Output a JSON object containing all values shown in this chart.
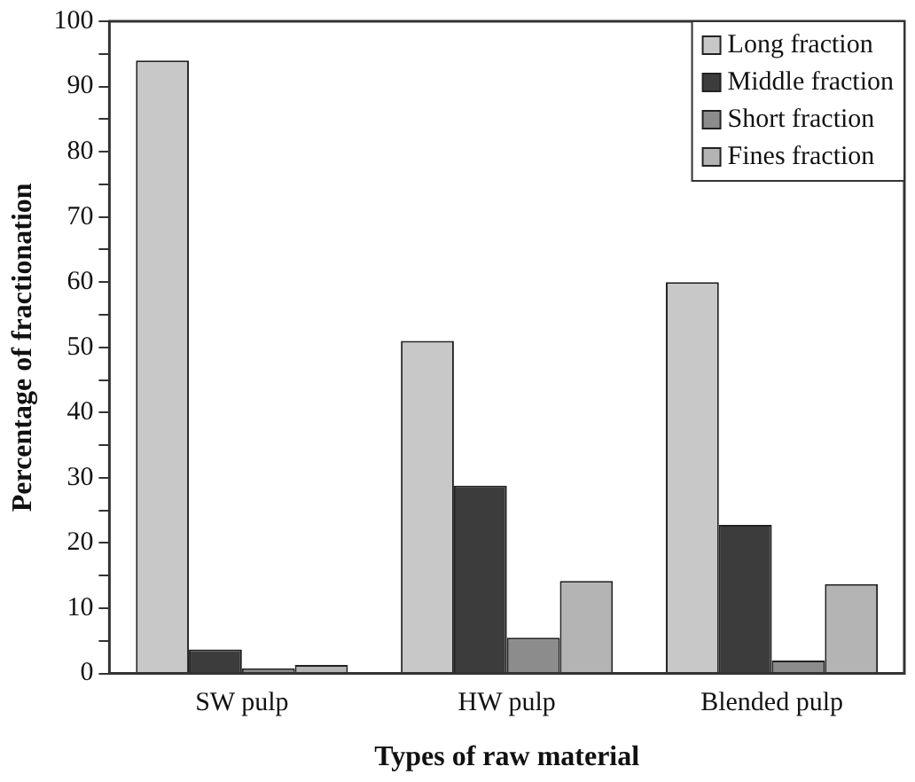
{
  "chart_data": {
    "type": "bar",
    "xlabel": "Types of raw material",
    "ylabel": "Percentage of fractionation",
    "categories": [
      "SW pulp",
      "HW pulp",
      "Blended pulp"
    ],
    "series": [
      {
        "name": "Long fraction",
        "color": "#c8c8c8",
        "values": [
          94,
          51,
          60
        ]
      },
      {
        "name": "Middle fraction",
        "color": "#3c3c3c",
        "values": [
          3.7,
          28.8,
          22.8
        ]
      },
      {
        "name": "Short fraction",
        "color": "#8c8c8c",
        "values": [
          0.8,
          5.5,
          2
        ]
      },
      {
        "name": "Fines fraction",
        "color": "#b4b4b4",
        "values": [
          1.3,
          14.2,
          13.7
        ]
      }
    ],
    "ylim": [
      0,
      100
    ],
    "yticks": [
      0,
      {
        "value": 5,
        "label": null
      },
      10,
      {
        "value": 15,
        "label": null
      },
      20,
      {
        "value": 25,
        "label": null
      },
      30,
      {
        "value": 35,
        "label": null
      },
      40,
      {
        "value": 45,
        "label": null
      },
      50,
      {
        "value": 55,
        "label": null
      },
      60,
      {
        "value": 65,
        "label": null
      },
      70,
      {
        "value": 75,
        "label": null
      },
      80,
      {
        "value": 85,
        "label": null
      },
      90,
      {
        "value": 95,
        "label": null
      },
      100
    ],
    "grid": false,
    "legend": "top right"
  }
}
